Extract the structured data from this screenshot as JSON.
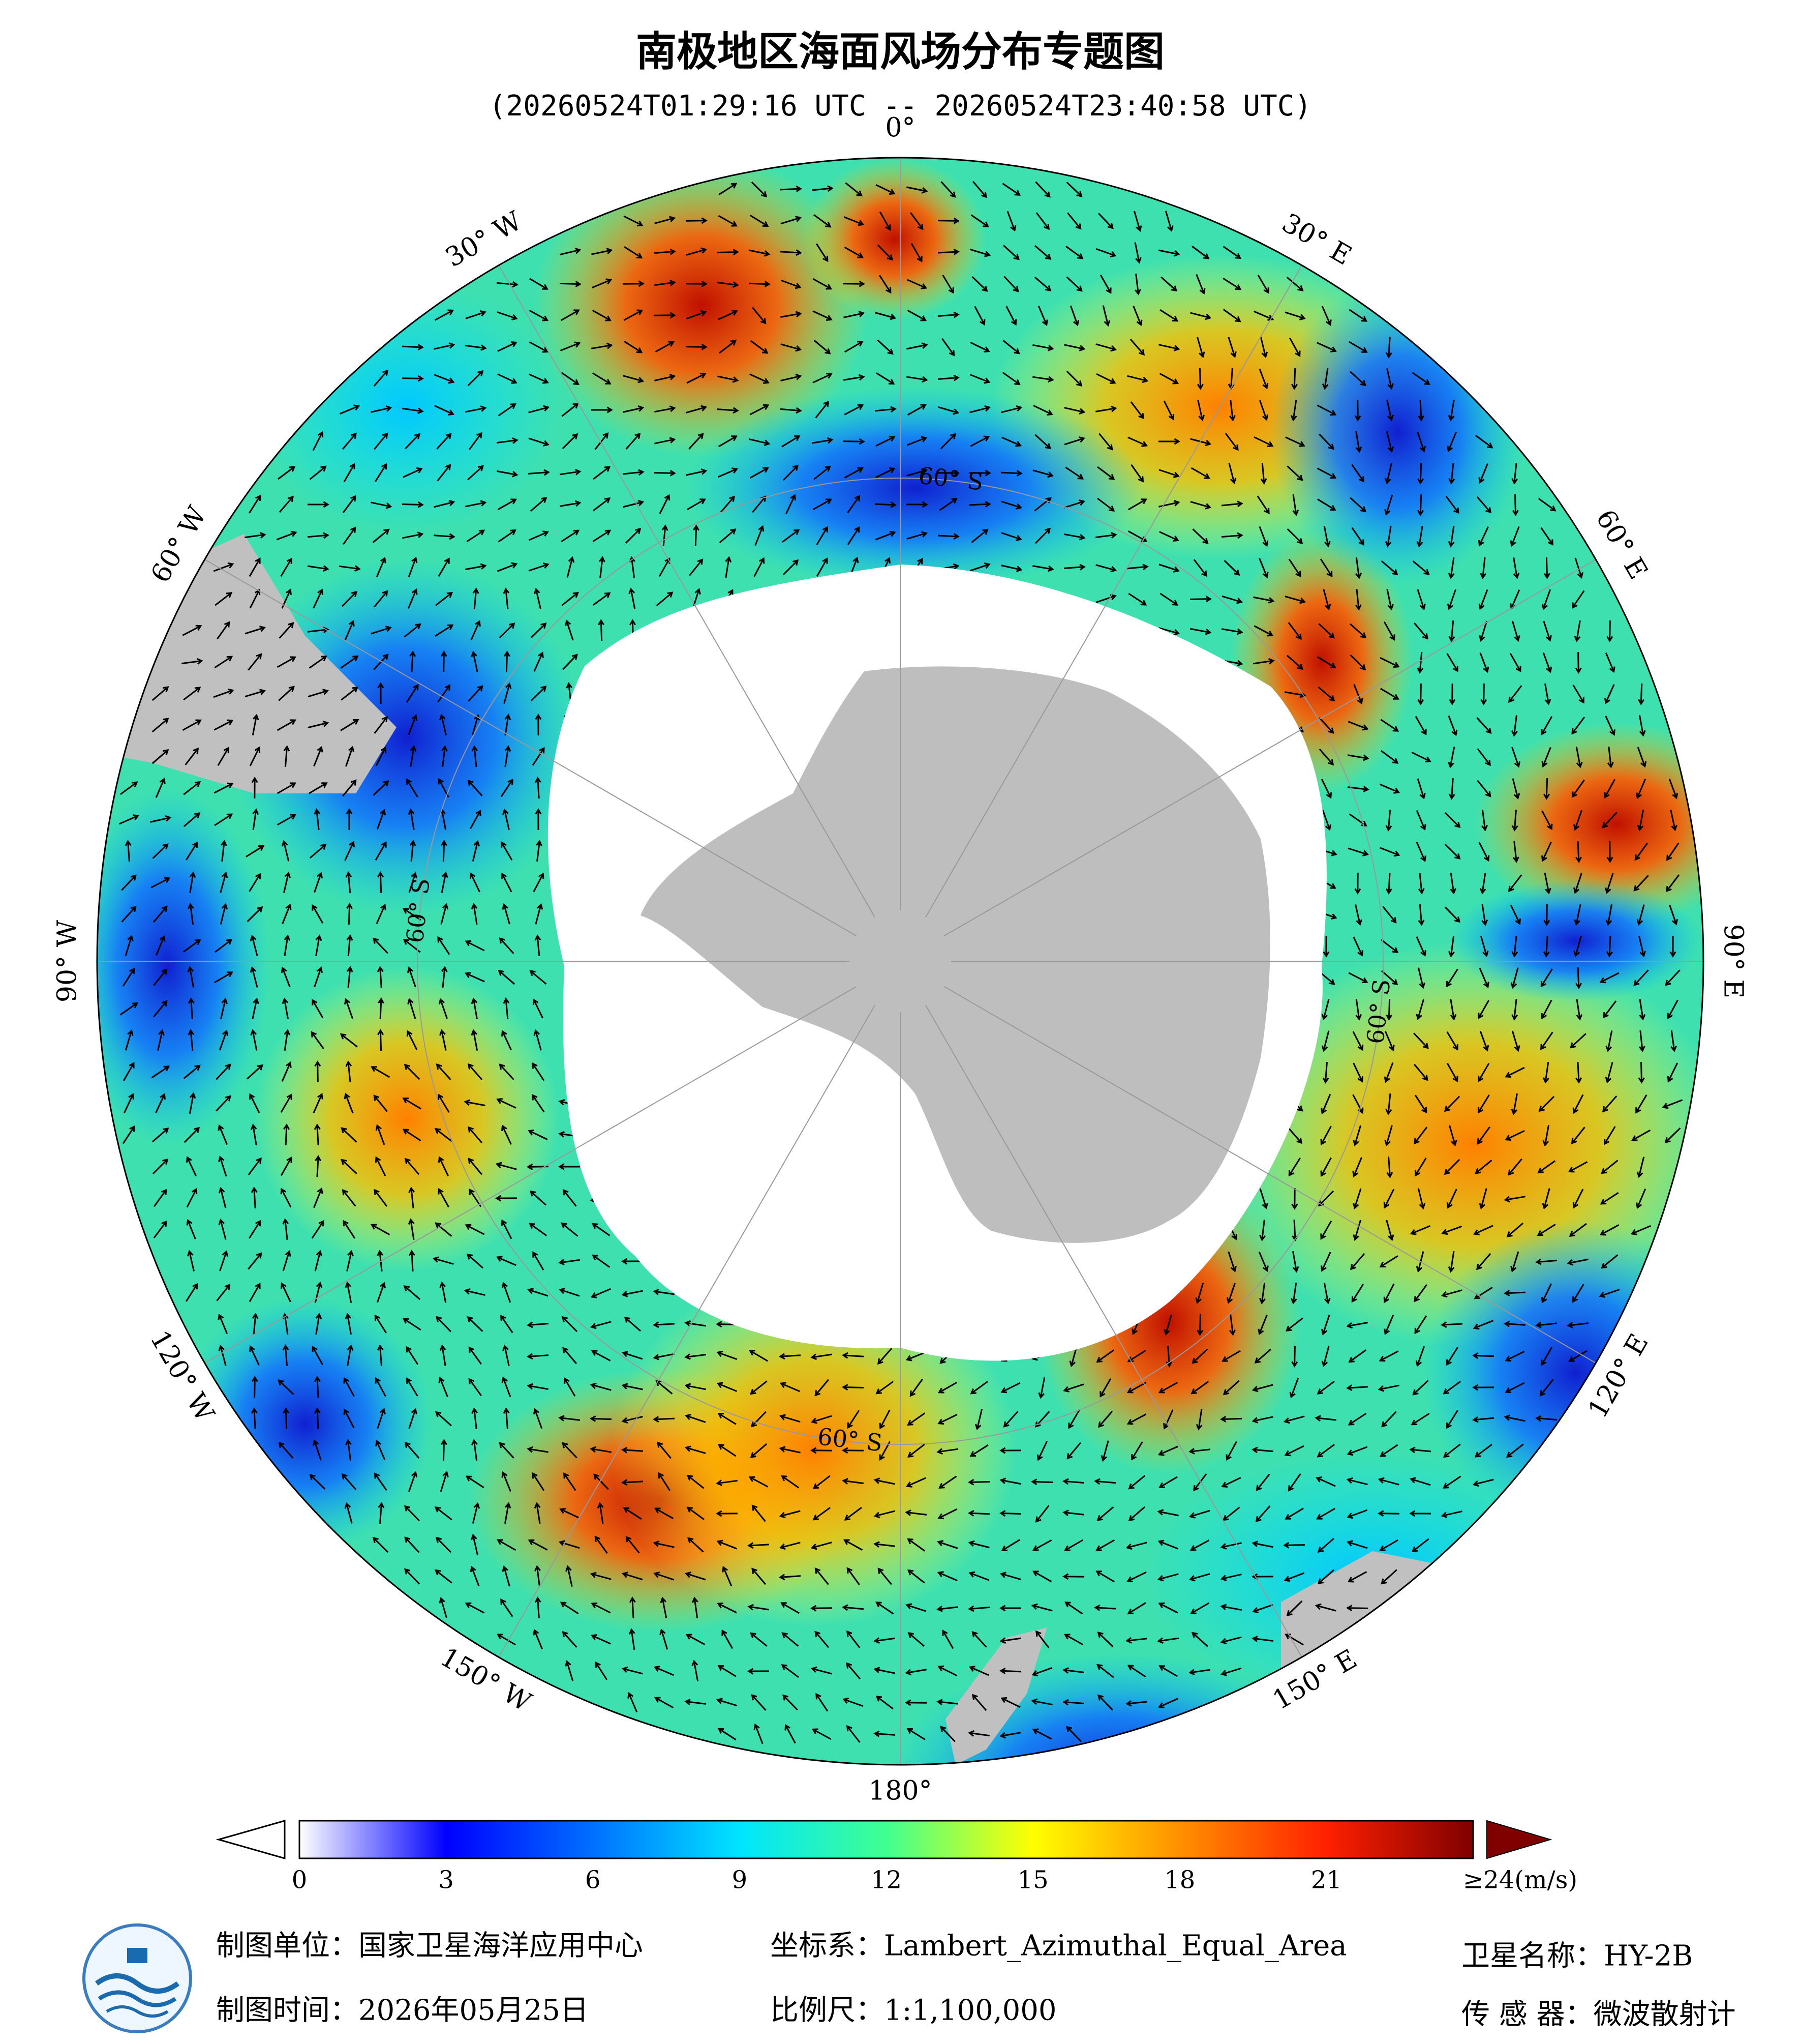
{
  "title": "南极地区海面风场分布专题图",
  "subtitle": "(20260524T01:29:16 UTC -- 20260524T23:40:58 UTC)",
  "meridians": {
    "labels": [
      "0°",
      "30° E",
      "60° E",
      "90° E",
      "120° E",
      "150° E",
      "180°",
      "150° W",
      "120° W",
      "90° W",
      "60° W",
      "30° W"
    ]
  },
  "parallels": {
    "labels": [
      "60° S",
      "60° S",
      "60° S",
      "60° S"
    ]
  },
  "colorbar": {
    "range": [
      0,
      24
    ],
    "ticks": [
      0,
      3,
      6,
      9,
      12,
      15,
      18,
      21,
      {
        "value": 24,
        "label": "≥24(m/s)"
      }
    ],
    "colors": [
      "#ffffff",
      "#0000ff",
      "#0070ff",
      "#00e5ff",
      "#40ff90",
      "#ffff00",
      "#ff9000",
      "#ff2000",
      "#800000"
    ]
  },
  "footer": {
    "unit": "制图单位：国家卫星海洋应用中心",
    "date": "制图时间：2026年05月25日",
    "crs": "坐标系：Lambert_Azimuthal_Equal_Area",
    "scale": "比例尺：1:1,100,000",
    "satellite": "卫星名称：HY-2B",
    "sensor": "传 感 器：微波散射计"
  }
}
